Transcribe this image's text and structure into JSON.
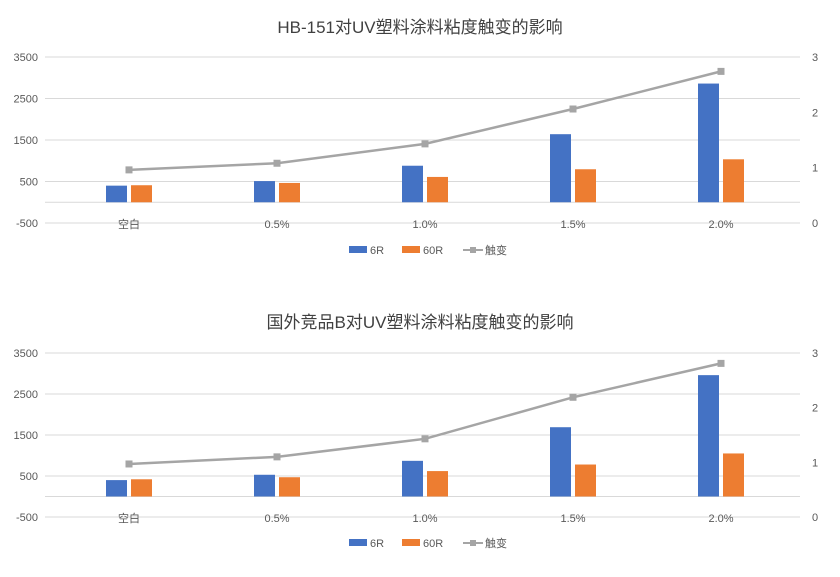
{
  "chart_data": [
    {
      "type": "bar",
      "title": "HB-151对UV塑料涂料粘度触变的影响",
      "categories": [
        "空白",
        "0.5%",
        "1.0%",
        "1.5%",
        "2.0%"
      ],
      "series": [
        {
          "name": "6R",
          "type": "bar",
          "axis": "left",
          "color": "#4472C4",
          "values": [
            400,
            510,
            880,
            1640,
            2860
          ]
        },
        {
          "name": "60R",
          "type": "bar",
          "axis": "left",
          "color": "#ED7D31",
          "values": [
            410,
            465,
            610,
            795,
            1035
          ]
        },
        {
          "name": "触变",
          "type": "line",
          "axis": "right",
          "color": "#A5A5A5",
          "values": [
            0.96,
            1.08,
            1.43,
            2.06,
            2.74
          ]
        }
      ],
      "yleft": {
        "ticks": [
          "-500",
          "500",
          "1500",
          "2500",
          "3500"
        ],
        "range": [
          -500,
          3500
        ]
      },
      "yright": {
        "ticks": [
          "0",
          "1",
          "2",
          "3"
        ],
        "range": [
          0,
          3
        ]
      },
      "legend": "bottom",
      "grid": true
    },
    {
      "type": "bar",
      "title": "国外竞品B对UV塑料涂料粘度触变的影响",
      "categories": [
        "空白",
        "0.5%",
        "1.0%",
        "1.5%",
        "2.0%"
      ],
      "series": [
        {
          "name": "6R",
          "type": "bar",
          "axis": "left",
          "color": "#4472C4",
          "values": [
            400,
            530,
            870,
            1690,
            2960
          ]
        },
        {
          "name": "60R",
          "type": "bar",
          "axis": "left",
          "color": "#ED7D31",
          "values": [
            420,
            470,
            620,
            780,
            1050
          ]
        },
        {
          "name": "触变",
          "type": "line",
          "axis": "right",
          "color": "#A5A5A5",
          "values": [
            0.97,
            1.1,
            1.43,
            2.19,
            2.81
          ]
        }
      ],
      "yleft": {
        "ticks": [
          "-500",
          "500",
          "1500",
          "2500",
          "3500"
        ],
        "range": [
          -500,
          3500
        ]
      },
      "yright": {
        "ticks": [
          "0",
          "1",
          "2",
          "3"
        ],
        "range": [
          0,
          3
        ]
      },
      "legend": "bottom",
      "grid": true
    }
  ]
}
